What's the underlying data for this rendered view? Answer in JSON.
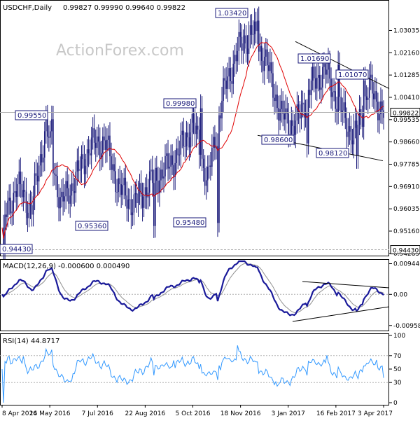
{
  "header": {
    "symbol": "USDCHF,Daily",
    "ohlc": "0.99827 0.99990 0.99640 0.99822"
  },
  "watermark": "ActionForex.com",
  "colors": {
    "candle": "#1a1a7a",
    "sma": "#e00000",
    "macd": "#1a1a9a",
    "signal": "#909090",
    "rsi": "#3399ff",
    "trend": "#000000",
    "frame": "#000000",
    "grid": "#b0b0b0"
  },
  "chart_data": [
    {
      "type": "candlestick",
      "title": "USDCHF,Daily",
      "ylim": [
        0.9428,
        1.0412
      ],
      "y_ticks": [
        "1.03035",
        "1.02160",
        "1.01285",
        "1.00410",
        "0.99535",
        "0.98660",
        "0.97785",
        "0.96910",
        "0.96035",
        "0.95160",
        "0.94285"
      ],
      "x_ticks": [
        "8 Apr 2016",
        "24 May 2016",
        "7 Jul 2016",
        "22 Aug 2016",
        "5 Oct 2016",
        "18 Nov 2016",
        "3 Jan 2017",
        "16 Feb 2017",
        "3 Apr 2017"
      ],
      "current_price": "0.99822",
      "support_line": "0.94430",
      "annotations": [
        {
          "text": "1.03420",
          "value": 1.0342
        },
        {
          "text": "0.99980",
          "value": 0.9998
        },
        {
          "text": "0.99550",
          "value": 0.9955
        },
        {
          "text": "1.01690",
          "value": 1.0169
        },
        {
          "text": "1.01070",
          "value": 1.0107
        },
        {
          "text": "0.98600",
          "value": 0.986
        },
        {
          "text": "0.98120",
          "value": 0.9812
        },
        {
          "text": "0.95360",
          "value": 0.9536
        },
        {
          "text": "0.95480",
          "value": 0.9548
        },
        {
          "text": "0.94430",
          "value": 0.9443
        }
      ],
      "close_series": [
        {
          "date": "8 Apr 2016",
          "close": 0.953
        },
        {
          "date": "20 Apr 2016",
          "close": 0.97
        },
        {
          "date": "3 May 2016",
          "close": 0.96
        },
        {
          "date": "24 May 2016",
          "close": 0.993
        },
        {
          "date": "7 Jun 2016",
          "close": 0.962
        },
        {
          "date": "27 Jun 2016",
          "close": 0.972
        },
        {
          "date": "7 Jul 2016",
          "close": 0.985
        },
        {
          "date": "22 Jul 2016",
          "close": 0.987
        },
        {
          "date": "5 Aug 2016",
          "close": 0.968
        },
        {
          "date": "22 Aug 2016",
          "close": 0.962
        },
        {
          "date": "5 Sep 2016",
          "close": 0.97
        },
        {
          "date": "20 Sep 2016",
          "close": 0.975
        },
        {
          "date": "5 Oct 2016",
          "close": 0.982
        },
        {
          "date": "18 Oct 2016",
          "close": 0.994
        },
        {
          "date": "7 Nov 2016",
          "close": 0.971
        },
        {
          "date": "18 Nov 2016",
          "close": 1.004
        },
        {
          "date": "2 Dec 2016",
          "close": 1.022
        },
        {
          "date": "15 Dec 2016",
          "close": 1.03
        },
        {
          "date": "3 Jan 2017",
          "close": 1.018
        },
        {
          "date": "18 Jan 2017",
          "close": 0.997
        },
        {
          "date": "1 Feb 2017",
          "close": 0.993
        },
        {
          "date": "16 Feb 2017",
          "close": 1.008
        },
        {
          "date": "1 Mar 2017",
          "close": 1.015
        },
        {
          "date": "13 Mar 2017",
          "close": 1.0
        },
        {
          "date": "22 Mar 2017",
          "close": 0.988
        },
        {
          "date": "3 Apr 2017",
          "close": 1.008
        },
        {
          "date": "13 Apr 2017",
          "close": 0.998
        }
      ]
    },
    {
      "type": "line",
      "title": "MACD(12,26,9) -0.000600 0.000490",
      "y_ticks": [
        "0.009446",
        "0.00",
        "-0.009588"
      ],
      "ylim": [
        -0.0105,
        0.0102
      ]
    },
    {
      "type": "line",
      "title": "RSI(14) 44.8717",
      "y_ticks": [
        "100",
        "70",
        "50",
        "30",
        "0"
      ],
      "ylim": [
        0,
        100
      ]
    }
  ]
}
